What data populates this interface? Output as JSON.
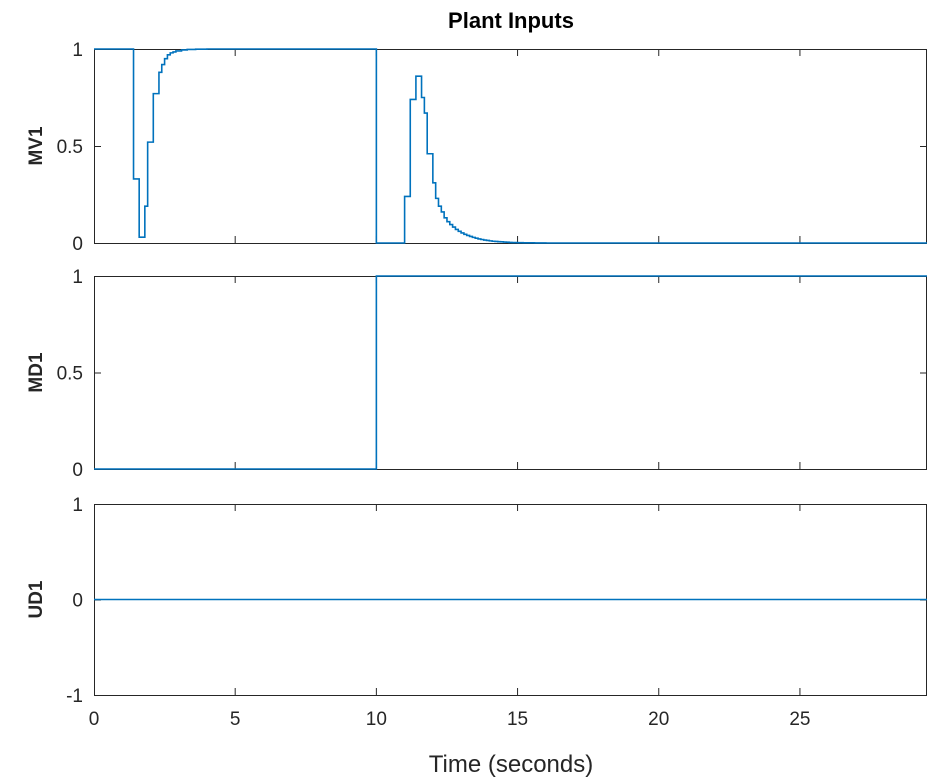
{
  "chart_data": {
    "type": "line",
    "title": "Plant Inputs",
    "xlabel": "Time (seconds)",
    "xlim": [
      0,
      29.5
    ],
    "xticks": [
      0,
      5,
      10,
      15,
      20,
      25
    ],
    "xtick_labels": [
      "0",
      "5",
      "10",
      "15",
      "20",
      "25"
    ],
    "grid": false,
    "line_color": "#0072BD",
    "step": true,
    "subplots": [
      {
        "ylabel": "MV1",
        "ylim": [
          0,
          1
        ],
        "yticks": [
          0,
          0.5,
          1
        ],
        "ytick_labels": [
          "0",
          "0.5",
          "1"
        ],
        "series": [
          {
            "x": [
              0,
              1.4,
              1.4,
              1.6,
              1.6,
              1.7,
              1.7,
              1.8,
              1.8,
              1.9,
              1.9,
              2.0,
              2.0,
              2.1,
              2.1,
              2.2,
              2.2,
              2.3,
              2.3,
              2.4,
              2.4,
              2.5,
              2.5,
              2.6,
              2.6,
              2.7,
              2.7,
              2.8,
              2.8,
              2.9,
              2.9,
              3.1,
              3.1,
              3.3,
              3.3,
              3.6,
              3.6,
              4.0,
              4.0,
              10.0,
              10.0,
              11.0,
              11.0,
              11.2,
              11.2,
              11.3,
              11.3,
              11.4,
              11.4,
              11.5,
              11.5,
              11.6,
              11.6,
              11.7,
              11.7,
              11.8,
              11.8,
              11.9,
              11.9,
              12.0,
              12.0,
              12.1,
              12.1,
              12.2,
              12.2,
              12.3,
              12.3,
              12.4,
              12.4,
              12.5,
              12.5,
              12.6,
              12.6,
              12.7,
              12.7,
              12.8,
              12.8,
              12.9,
              12.9,
              13.0,
              13.0,
              13.1,
              13.1,
              13.2,
              13.2,
              13.3,
              13.3,
              13.4,
              13.4,
              13.5,
              13.5,
              13.6,
              13.6,
              13.7,
              13.7,
              13.8,
              13.8,
              13.9,
              13.9,
              14.0,
              14.0,
              14.1,
              14.1,
              14.2,
              14.2,
              14.3,
              14.3,
              14.4,
              14.4,
              14.5,
              14.5,
              14.6,
              14.6,
              14.7,
              14.7,
              14.8,
              14.8,
              15.0,
              15.0,
              15.2,
              15.2,
              15.4,
              15.4,
              15.6,
              15.6,
              16.0,
              16.0,
              29.5
            ],
            "y": [
              1,
              1,
              0.33,
              0.33,
              0.03,
              0.03,
              0.03,
              0.03,
              0.19,
              0.19,
              0.52,
              0.52,
              0.52,
              0.52,
              0.77,
              0.77,
              0.77,
              0.77,
              0.88,
              0.88,
              0.92,
              0.92,
              0.95,
              0.95,
              0.97,
              0.97,
              0.98,
              0.98,
              0.985,
              0.985,
              0.99,
              0.99,
              0.995,
              0.995,
              0.998,
              0.998,
              0.999,
              0.999,
              1.0,
              1.0,
              0,
              0,
              0.24,
              0.24,
              0.74,
              0.74,
              0.74,
              0.74,
              0.86,
              0.86,
              0.86,
              0.86,
              0.75,
              0.75,
              0.67,
              0.67,
              0.46,
              0.46,
              0.46,
              0.46,
              0.31,
              0.31,
              0.23,
              0.23,
              0.19,
              0.19,
              0.16,
              0.16,
              0.13,
              0.13,
              0.11,
              0.11,
              0.095,
              0.095,
              0.082,
              0.082,
              0.07,
              0.07,
              0.06,
              0.06,
              0.052,
              0.052,
              0.045,
              0.045,
              0.039,
              0.039,
              0.034,
              0.034,
              0.029,
              0.029,
              0.025,
              0.025,
              0.021,
              0.021,
              0.018,
              0.018,
              0.015,
              0.015,
              0.013,
              0.013,
              0.011,
              0.011,
              0.009,
              0.009,
              0.008,
              0.008,
              0.007,
              0.007,
              0.006,
              0.006,
              0.005,
              0.005,
              0.004,
              0.004,
              0.003,
              0.003,
              0.002,
              0.002,
              0.0015,
              0.0015,
              0.001,
              0.001,
              0.0007,
              0.0007,
              0.0004,
              0.0004,
              0,
              0
            ]
          }
        ]
      },
      {
        "ylabel": "MD1",
        "ylim": [
          0,
          1
        ],
        "yticks": [
          0,
          0.5,
          1
        ],
        "ytick_labels": [
          "0",
          "0.5",
          "1"
        ],
        "series": [
          {
            "x": [
              0,
              10,
              10,
              29.5
            ],
            "y": [
              0,
              0,
              1,
              1
            ]
          }
        ]
      },
      {
        "ylabel": "UD1",
        "ylim": [
          -1,
          1
        ],
        "yticks": [
          -1,
          0,
          1
        ],
        "ytick_labels": [
          "-1",
          "0",
          "1"
        ],
        "series": [
          {
            "x": [
              0,
              29.5
            ],
            "y": [
              0,
              0
            ]
          }
        ]
      }
    ]
  }
}
